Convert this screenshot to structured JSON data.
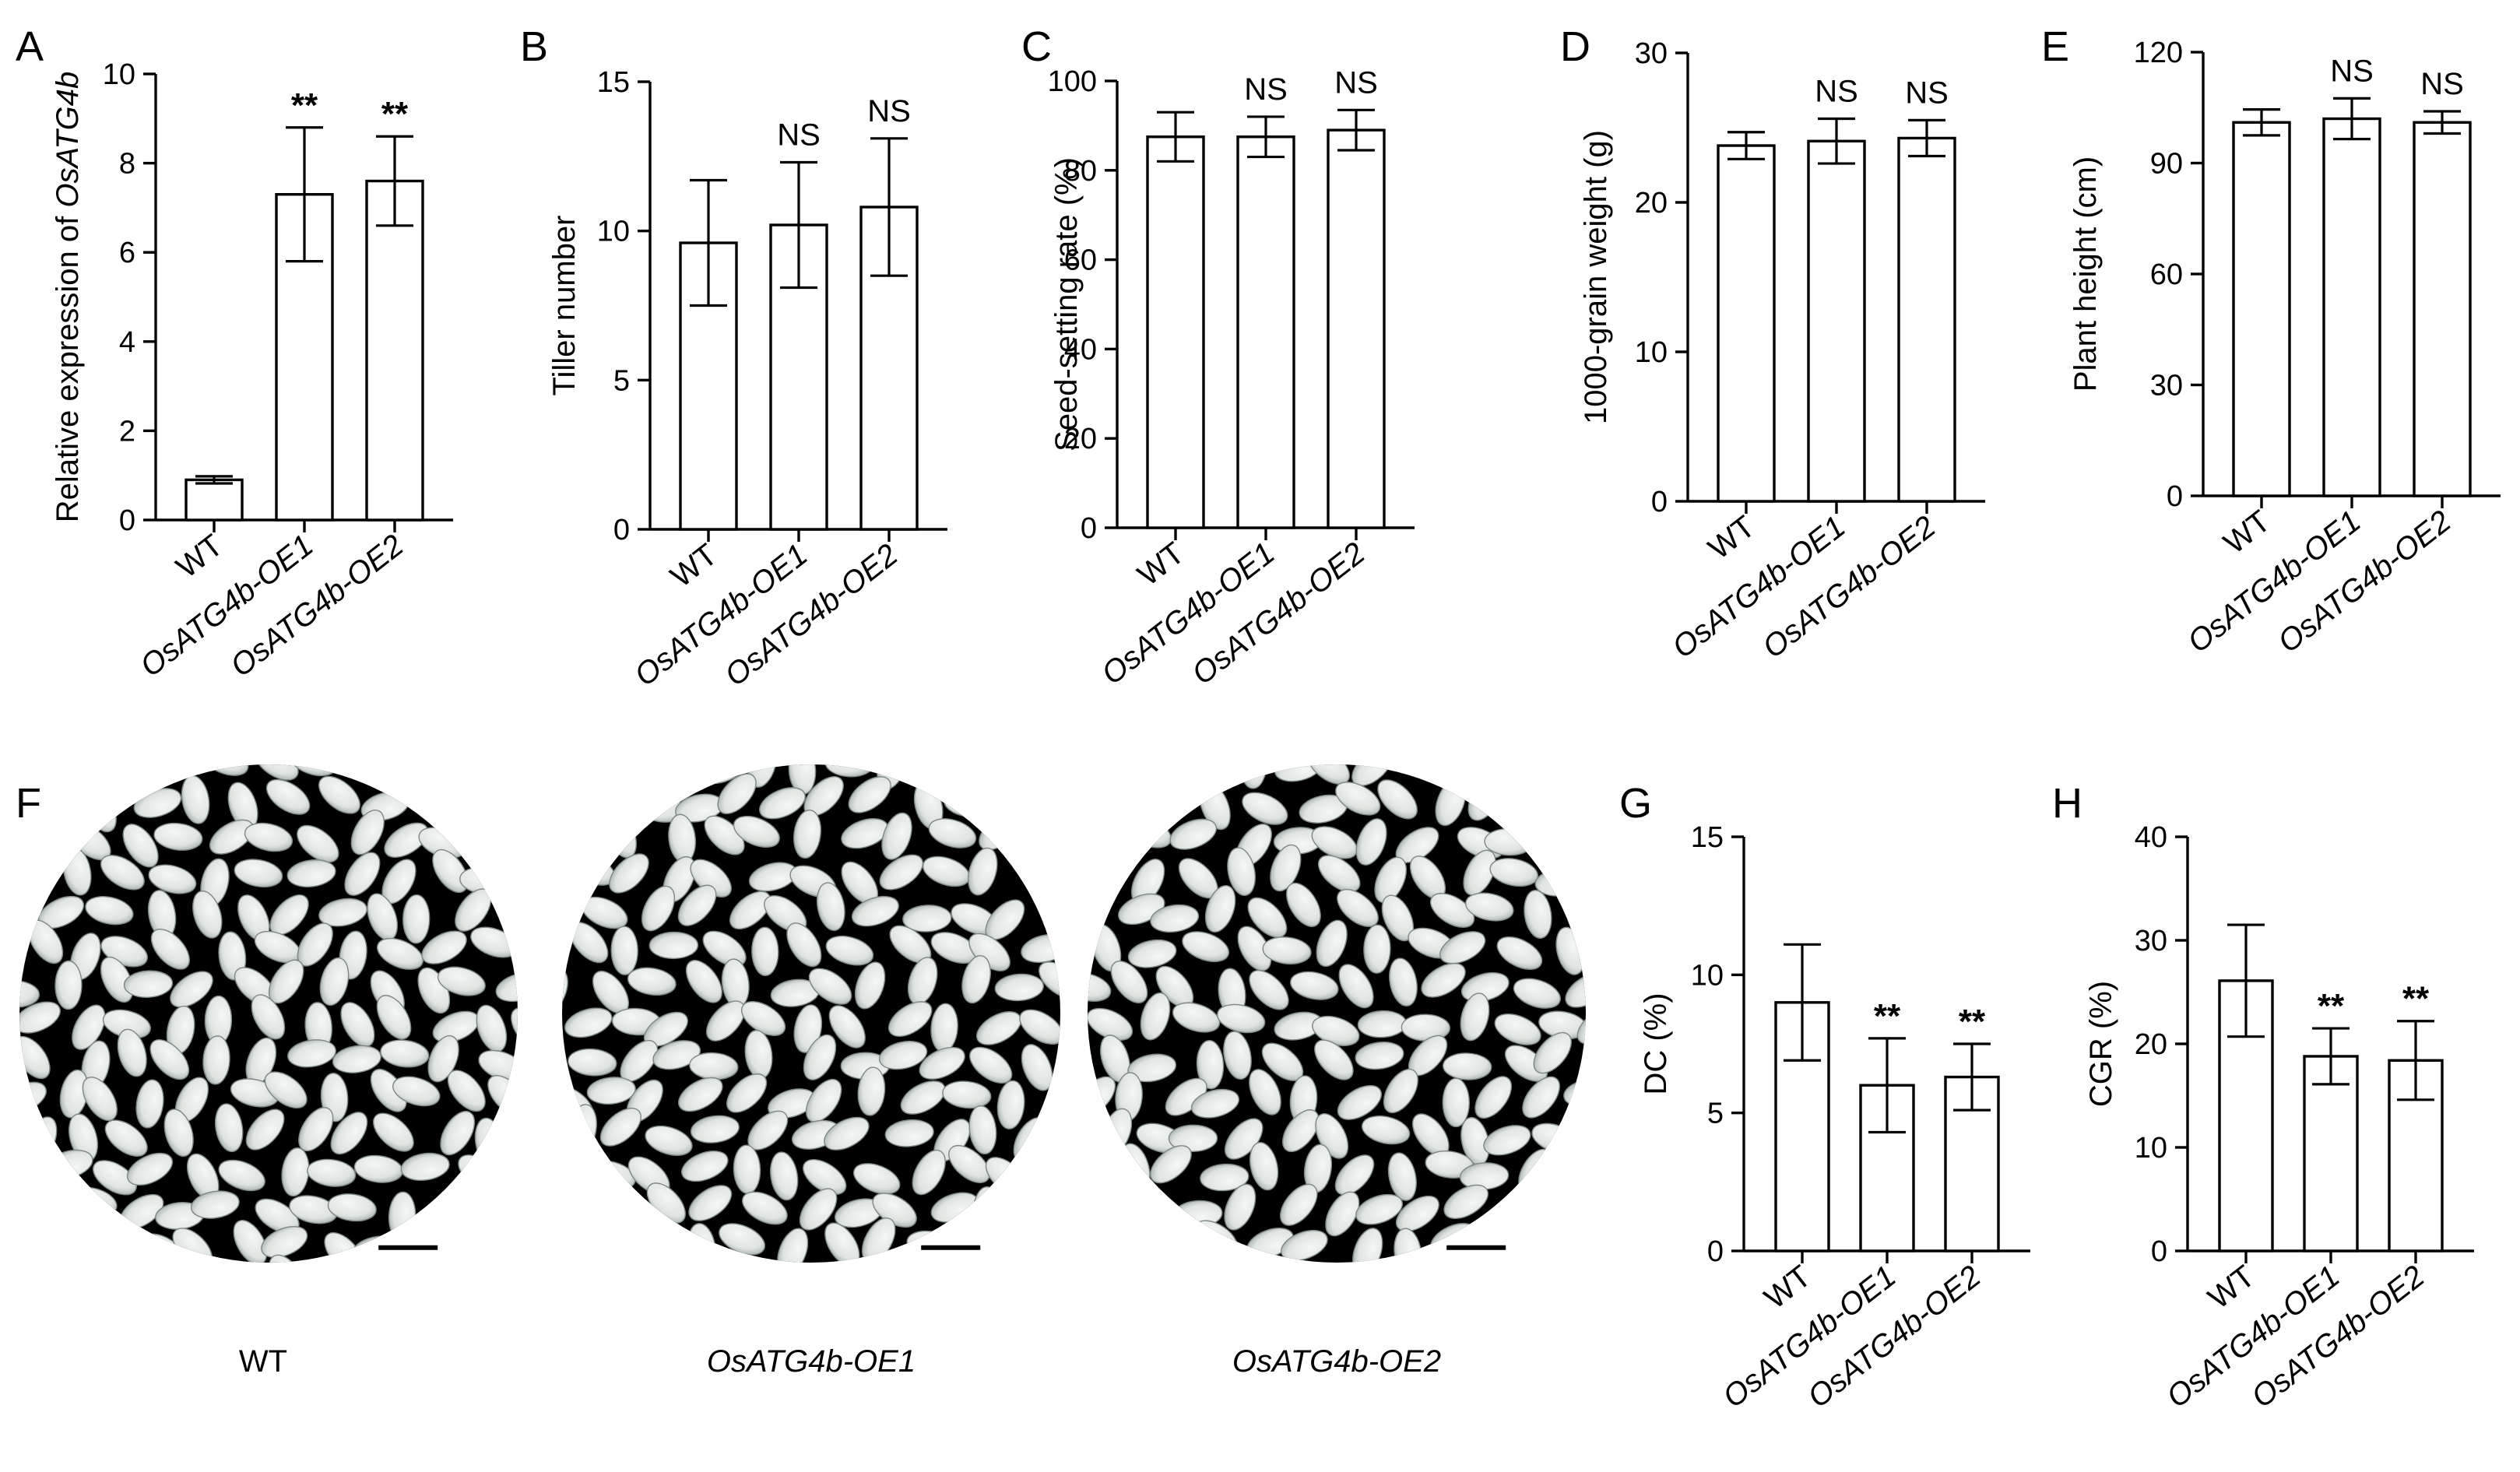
{
  "figure": {
    "palette": {
      "bar_fill": "#ffffff",
      "bar_stroke": "#000000",
      "photo_background": "#000000",
      "grain_color": "#dfe4e1"
    },
    "photo_panel": {
      "letter": "F",
      "captions": [
        "WT",
        "OsATG4b-OE1",
        "OsATG4b-OE2"
      ],
      "italic": [
        false,
        true,
        true
      ],
      "scale_bar": "black line"
    }
  },
  "chart_data": [
    {
      "panel": "A",
      "type": "bar",
      "categories": [
        "WT",
        "OsATG4b-OE1",
        "OsATG4b-OE2"
      ],
      "values": [
        0.9,
        7.3,
        7.6
      ],
      "errors": [
        0.08,
        1.5,
        1.0
      ],
      "significance": [
        "",
        "**",
        "**"
      ],
      "ylabel_prefix": "Relative expression of ",
      "ylabel_gene": "OsATG4b",
      "ylim": [
        0,
        10
      ],
      "yticks": [
        0,
        2,
        4,
        6,
        8,
        10
      ],
      "grid": false
    },
    {
      "panel": "B",
      "type": "bar",
      "categories": [
        "WT",
        "OsATG4b-OE1",
        "OsATG4b-OE2"
      ],
      "values": [
        9.6,
        10.2,
        10.8
      ],
      "errors": [
        2.1,
        2.1,
        2.3
      ],
      "significance": [
        "",
        "NS",
        "NS"
      ],
      "ylabel": "Tiller number",
      "ylim": [
        0,
        15
      ],
      "yticks": [
        0,
        5,
        10,
        15
      ],
      "grid": false
    },
    {
      "panel": "C",
      "type": "bar",
      "categories": [
        "WT",
        "OsATG4b-OE1",
        "OsATG4b-OE2"
      ],
      "values": [
        87.5,
        87.5,
        89.0
      ],
      "errors": [
        5.5,
        4.5,
        4.5
      ],
      "significance": [
        "",
        "NS",
        "NS"
      ],
      "ylabel": "Seed-setting rate (%)",
      "ylim": [
        0,
        100
      ],
      "yticks": [
        0,
        20,
        40,
        60,
        80,
        100
      ],
      "grid": false
    },
    {
      "panel": "D",
      "type": "bar",
      "categories": [
        "WT",
        "OsATG4b-OE1",
        "OsATG4b-OE2"
      ],
      "values": [
        23.8,
        24.1,
        24.3
      ],
      "errors": [
        0.9,
        1.5,
        1.2
      ],
      "significance": [
        "",
        "NS",
        "NS"
      ],
      "ylabel": "1000-grain weight (g)",
      "ylim": [
        0,
        30
      ],
      "yticks": [
        0,
        10,
        20,
        30
      ],
      "grid": false
    },
    {
      "panel": "E",
      "type": "bar",
      "categories": [
        "WT",
        "OsATG4b-OE1",
        "OsATG4b-OE2"
      ],
      "values": [
        101,
        102,
        101
      ],
      "errors": [
        3.5,
        5.5,
        3.0
      ],
      "significance": [
        "",
        "NS",
        "NS"
      ],
      "ylabel": "Plant height (cm)",
      "ylim": [
        0,
        120
      ],
      "yticks": [
        0,
        30,
        60,
        90,
        120
      ],
      "grid": false
    },
    {
      "panel": "G",
      "type": "bar",
      "categories": [
        "WT",
        "OsATG4b-OE1",
        "OsATG4b-OE2"
      ],
      "values": [
        9.0,
        6.0,
        6.3
      ],
      "errors": [
        2.1,
        1.7,
        1.2
      ],
      "significance": [
        "",
        "**",
        "**"
      ],
      "ylabel": "DC  (%)",
      "ylim": [
        0,
        15
      ],
      "yticks": [
        0,
        5,
        10,
        15
      ],
      "grid": false
    },
    {
      "panel": "H",
      "type": "bar",
      "categories": [
        "WT",
        "OsATG4b-OE1",
        "OsATG4b-OE2"
      ],
      "values": [
        26.1,
        18.8,
        18.4
      ],
      "errors": [
        5.4,
        2.7,
        3.8
      ],
      "significance": [
        "",
        "**",
        "**"
      ],
      "ylabel": "CGR (%)",
      "ylim": [
        0,
        40
      ],
      "yticks": [
        0,
        10,
        20,
        30,
        40
      ],
      "grid": false
    }
  ]
}
